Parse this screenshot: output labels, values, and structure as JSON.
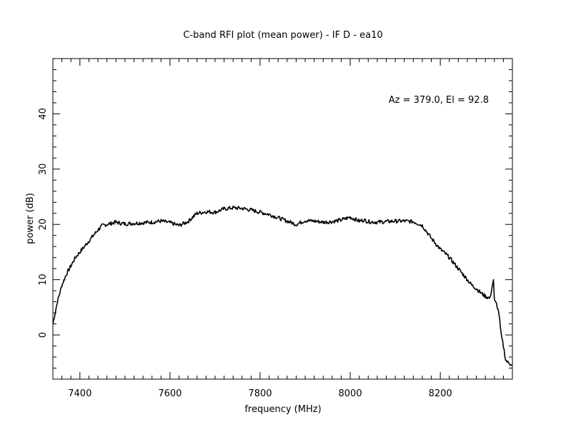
{
  "chart_data": {
    "type": "line",
    "title": "C-band RFI plot (mean power) - IF D - ea10",
    "xlabel": "frequency (MHz)",
    "ylabel": "power (dB)",
    "annotation": "Az = 379.0, El = 92.8",
    "xlim": [
      7340,
      8360
    ],
    "ylim": [
      -8,
      50
    ],
    "x_ticks": [
      7400,
      7600,
      7800,
      8000,
      8200
    ],
    "y_ticks": [
      0,
      10,
      20,
      30,
      40
    ],
    "grid": false,
    "line_color": "#000000",
    "series": [
      {
        "x": [
          7340,
          7345,
          7350,
          7360,
          7370,
          7380,
          7390,
          7400,
          7410,
          7420,
          7430,
          7440,
          7450,
          7460,
          7470,
          7480,
          7490,
          7500,
          7520,
          7540,
          7560,
          7580,
          7600,
          7620,
          7640,
          7650,
          7660,
          7680,
          7700,
          7720,
          7740,
          7760,
          7780,
          7800,
          7820,
          7840,
          7860,
          7880,
          7900,
          7920,
          7940,
          7960,
          7980,
          8000,
          8020,
          8030,
          8040,
          8060,
          8080,
          8100,
          8120,
          8140,
          8160,
          8180,
          8200,
          8210,
          8220,
          8230,
          8240,
          8250,
          8260,
          8270,
          8280,
          8290,
          8300,
          8310,
          8318,
          8320,
          8325,
          8330,
          8335,
          8340,
          8345,
          8350,
          8355,
          8360
        ],
        "y": [
          2,
          4,
          6,
          9,
          11,
          12.5,
          14,
          15,
          16,
          17,
          18,
          19,
          19.8,
          20,
          20.2,
          20.4,
          20.2,
          20.1,
          20.2,
          20.3,
          20.4,
          20.6,
          20.3,
          19.8,
          20.5,
          21.3,
          22,
          22.3,
          22.2,
          22.8,
          23,
          22.9,
          22.6,
          22.2,
          21.8,
          21.2,
          20.6,
          20,
          20.7,
          20.6,
          20.4,
          20.5,
          20.8,
          21.3,
          20.6,
          20.8,
          20.5,
          20.4,
          20.5,
          20.6,
          20.6,
          20.5,
          19.8,
          17.5,
          15.5,
          14.8,
          14,
          13,
          12,
          11,
          10,
          9,
          8.4,
          7.6,
          7,
          6.6,
          10,
          6.2,
          5.5,
          4,
          0,
          -2,
          -4.5,
          -5,
          -5.2,
          -5.3
        ]
      }
    ]
  }
}
